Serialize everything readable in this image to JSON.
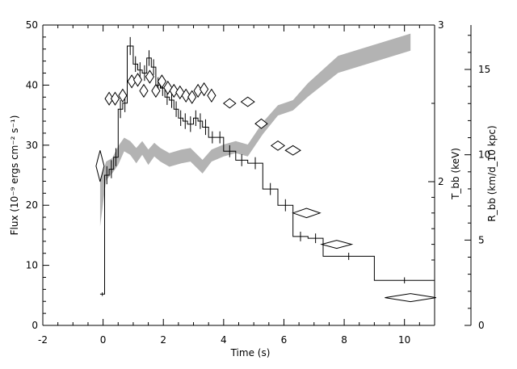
{
  "chart_data": {
    "type": "line",
    "title": "",
    "xlabel": "Time (s)",
    "xlim": [
      -2,
      11
    ],
    "xticks": [
      -2,
      0,
      2,
      4,
      6,
      8,
      10
    ],
    "ylabel": "Flux (10⁻⁹ ergs cm⁻² s⁻¹)",
    "ylim": [
      0,
      50
    ],
    "yticks": [
      0,
      10,
      20,
      30,
      40,
      50
    ],
    "right_axis_T": {
      "label": "T_bb (keV)",
      "ticks": [
        2,
        3
      ],
      "note": "Temperature axis with ticks at 2 and 3 keV"
    },
    "right_axis_R": {
      "label": "R_bb (km/d_10 kpc)",
      "ticks": [
        0,
        5,
        10,
        15
      ]
    },
    "flux_bins": [
      [
        -0.1,
        0.05,
        5.2,
        0.3
      ],
      [
        0.05,
        0.2,
        25,
        1.5
      ],
      [
        0.2,
        0.35,
        26,
        1.5
      ],
      [
        0.35,
        0.5,
        28,
        1.5
      ],
      [
        0.5,
        0.65,
        36,
        1.5
      ],
      [
        0.65,
        0.8,
        37,
        1.5
      ],
      [
        0.8,
        1.0,
        46.5,
        1.5
      ],
      [
        1.0,
        1.15,
        43.5,
        1.3
      ],
      [
        1.15,
        1.3,
        42.5,
        1.3
      ],
      [
        1.3,
        1.45,
        42,
        1.3
      ],
      [
        1.45,
        1.6,
        44.5,
        1.3
      ],
      [
        1.6,
        1.75,
        43,
        1.3
      ],
      [
        1.75,
        1.9,
        40,
        1.3
      ],
      [
        1.9,
        2.05,
        39.5,
        1.3
      ],
      [
        2.05,
        2.2,
        38,
        1.3
      ],
      [
        2.2,
        2.35,
        37.5,
        1.3
      ],
      [
        2.35,
        2.5,
        36,
        1.3
      ],
      [
        2.5,
        2.65,
        34.5,
        1.3
      ],
      [
        2.65,
        2.8,
        34,
        1.3
      ],
      [
        2.8,
        3.0,
        33.5,
        1.3
      ],
      [
        3.0,
        3.15,
        34.5,
        1.3
      ],
      [
        3.15,
        3.3,
        34,
        1.3
      ],
      [
        3.3,
        3.5,
        33,
        1.3
      ],
      [
        3.5,
        3.75,
        31.3,
        1
      ],
      [
        3.75,
        4.0,
        31.3,
        1
      ],
      [
        4.0,
        4.4,
        29,
        1
      ],
      [
        4.4,
        4.8,
        27.5,
        1
      ],
      [
        4.8,
        5.3,
        27,
        1
      ],
      [
        5.3,
        5.8,
        22.7,
        1
      ],
      [
        5.8,
        6.3,
        20,
        1
      ],
      [
        6.3,
        6.8,
        14.8,
        0.8
      ],
      [
        6.8,
        7.3,
        14.5,
        0.8
      ],
      [
        7.3,
        9.0,
        11.5,
        0.6
      ],
      [
        9.0,
        11.0,
        7.5,
        0.5
      ]
    ],
    "temperature_points": [
      {
        "t": -0.1,
        "T_keV": 2.1,
        "dt": 0.05,
        "dT": 0.1
      },
      {
        "t": 0.2,
        "T_keV": 2.53,
        "dt": 0.1,
        "dT": 0.04
      },
      {
        "t": 0.4,
        "T_keV": 2.53,
        "dt": 0.1,
        "dT": 0.04
      },
      {
        "t": 0.65,
        "T_keV": 2.55,
        "dt": 0.1,
        "dT": 0.04
      },
      {
        "t": 0.95,
        "T_keV": 2.64,
        "dt": 0.1,
        "dT": 0.04
      },
      {
        "t": 1.15,
        "T_keV": 2.65,
        "dt": 0.1,
        "dT": 0.04
      },
      {
        "t": 1.35,
        "T_keV": 2.58,
        "dt": 0.1,
        "dT": 0.04
      },
      {
        "t": 1.55,
        "T_keV": 2.67,
        "dt": 0.1,
        "dT": 0.04
      },
      {
        "t": 1.75,
        "T_keV": 2.58,
        "dt": 0.1,
        "dT": 0.04
      },
      {
        "t": 1.95,
        "T_keV": 2.64,
        "dt": 0.1,
        "dT": 0.04
      },
      {
        "t": 2.15,
        "T_keV": 2.6,
        "dt": 0.1,
        "dT": 0.04
      },
      {
        "t": 2.35,
        "T_keV": 2.58,
        "dt": 0.1,
        "dT": 0.04
      },
      {
        "t": 2.55,
        "T_keV": 2.57,
        "dt": 0.1,
        "dT": 0.04
      },
      {
        "t": 2.75,
        "T_keV": 2.55,
        "dt": 0.1,
        "dT": 0.04
      },
      {
        "t": 2.95,
        "T_keV": 2.54,
        "dt": 0.1,
        "dT": 0.04
      },
      {
        "t": 3.15,
        "T_keV": 2.58,
        "dt": 0.1,
        "dT": 0.04
      },
      {
        "t": 3.35,
        "T_keV": 2.59,
        "dt": 0.1,
        "dT": 0.04
      },
      {
        "t": 3.6,
        "T_keV": 2.55,
        "dt": 0.12,
        "dT": 0.04
      },
      {
        "t": 4.2,
        "T_keV": 2.5,
        "dt": 0.2,
        "dT": 0.03
      },
      {
        "t": 4.8,
        "T_keV": 2.51,
        "dt": 0.22,
        "dT": 0.03
      },
      {
        "t": 5.25,
        "T_keV": 2.37,
        "dt": 0.2,
        "dT": 0.03
      },
      {
        "t": 5.8,
        "T_keV": 2.23,
        "dt": 0.22,
        "dT": 0.03
      },
      {
        "t": 6.3,
        "T_keV": 2.2,
        "dt": 0.25,
        "dT": 0.03
      },
      {
        "t": 6.75,
        "T_keV": 1.8,
        "dt": 0.45,
        "dT": 0.03
      },
      {
        "t": 7.75,
        "T_keV": 1.6,
        "dt": 0.5,
        "dT": 0.02
      },
      {
        "t": 10.2,
        "T_keV": 1.26,
        "dt": 0.85,
        "dT": 0.02
      }
    ],
    "radius_band": [
      {
        "t": -0.1,
        "lo": 5.8,
        "hi": 8.4
      },
      {
        "t": 0.1,
        "lo": 8.5,
        "hi": 9.6
      },
      {
        "t": 0.3,
        "lo": 8.9,
        "hi": 9.8
      },
      {
        "t": 0.5,
        "lo": 9.4,
        "hi": 10.5
      },
      {
        "t": 0.7,
        "lo": 10.2,
        "hi": 11.0
      },
      {
        "t": 0.9,
        "lo": 10.0,
        "hi": 10.8
      },
      {
        "t": 1.1,
        "lo": 9.5,
        "hi": 10.4
      },
      {
        "t": 1.3,
        "lo": 10.0,
        "hi": 10.8
      },
      {
        "t": 1.5,
        "lo": 9.4,
        "hi": 10.3
      },
      {
        "t": 1.7,
        "lo": 9.9,
        "hi": 10.7
      },
      {
        "t": 1.9,
        "lo": 9.6,
        "hi": 10.4
      },
      {
        "t": 2.2,
        "lo": 9.3,
        "hi": 10.1
      },
      {
        "t": 2.6,
        "lo": 9.5,
        "hi": 10.3
      },
      {
        "t": 2.9,
        "lo": 9.6,
        "hi": 10.4
      },
      {
        "t": 3.3,
        "lo": 8.9,
        "hi": 9.7
      },
      {
        "t": 3.6,
        "lo": 9.6,
        "hi": 10.3
      },
      {
        "t": 4.0,
        "lo": 9.9,
        "hi": 10.6
      },
      {
        "t": 4.4,
        "lo": 10.1,
        "hi": 10.8
      },
      {
        "t": 4.8,
        "lo": 9.9,
        "hi": 10.6
      },
      {
        "t": 5.3,
        "lo": 11.2,
        "hi": 11.9
      },
      {
        "t": 5.8,
        "lo": 12.3,
        "hi": 12.9
      },
      {
        "t": 6.3,
        "lo": 12.6,
        "hi": 13.2
      },
      {
        "t": 6.8,
        "lo": 13.4,
        "hi": 14.2
      },
      {
        "t": 7.8,
        "lo": 14.8,
        "hi": 15.8
      },
      {
        "t": 10.2,
        "lo": 16.1,
        "hi": 17.1
      }
    ],
    "grid": false
  }
}
